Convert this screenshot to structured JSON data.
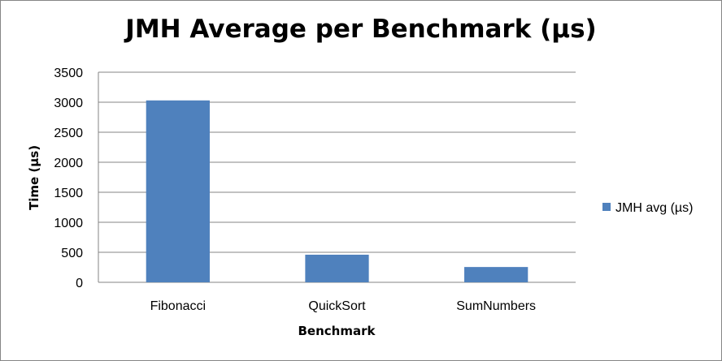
{
  "chart_data": {
    "type": "bar",
    "title": "JMH Average per Benchmark (µs)",
    "xlabel": "Benchmark",
    "ylabel": "Time (µs)",
    "categories": [
      "Fibonacci",
      "QuickSort",
      "SumNumbers"
    ],
    "series": [
      {
        "name": "JMH avg (µs)",
        "values": [
          3030,
          460,
          255
        ],
        "color": "#4F81BD"
      }
    ],
    "ylim": [
      0,
      3500
    ],
    "yticks": [
      0,
      500,
      1000,
      1500,
      2000,
      2500,
      3000,
      3500
    ],
    "grid": true,
    "legend_position": "right"
  }
}
